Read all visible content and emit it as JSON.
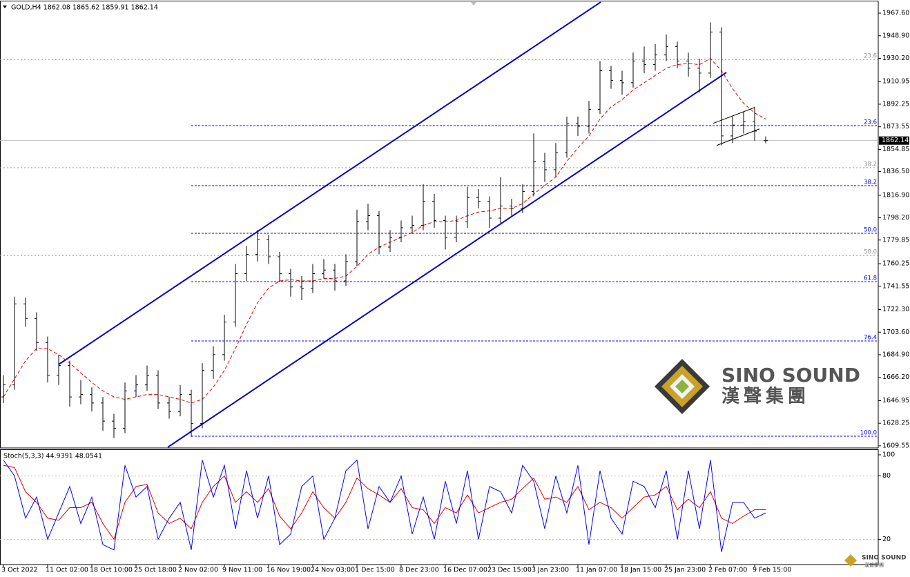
{
  "chart_data": [
    {
      "type": "ohlc",
      "title": "GOLD,H4  1862.08 1865.62 1859.91 1862.14",
      "open": [
        1650,
        1660,
        1727,
        1715,
        1695,
        1668,
        1676,
        1650,
        1652,
        1645,
        1630,
        1624,
        1655,
        1660,
        1668,
        1645,
        1638,
        1652,
        1628,
        1672,
        1685,
        1712,
        1752,
        1768,
        1780,
        1766,
        1752,
        1741,
        1740,
        1752,
        1755,
        1746,
        1762,
        1795,
        1800,
        1774,
        1782,
        1790,
        1792,
        1812,
        1796,
        1782,
        1795,
        1815,
        1812,
        1798,
        1808,
        1806,
        1820,
        1845,
        1838,
        1852,
        1876,
        1874,
        1888,
        1920,
        1912,
        1910,
        1928,
        1925,
        1933,
        1940,
        1928,
        1922,
        1918,
        1952,
        1866,
        1875,
        1878,
        1862.08
      ],
      "high": [
        1668,
        1733,
        1732,
        1720,
        1700,
        1685,
        1680,
        1664,
        1658,
        1650,
        1636,
        1662,
        1668,
        1676,
        1672,
        1650,
        1660,
        1656,
        1678,
        1692,
        1718,
        1760,
        1775,
        1788,
        1784,
        1770,
        1756,
        1750,
        1760,
        1764,
        1760,
        1768,
        1805,
        1810,
        1804,
        1788,
        1796,
        1800,
        1826,
        1818,
        1800,
        1800,
        1824,
        1822,
        1816,
        1832,
        1814,
        1826,
        1868,
        1852,
        1860,
        1882,
        1882,
        1895,
        1928,
        1924,
        1920,
        1935,
        1940,
        1942,
        1950,
        1944,
        1935,
        1930,
        1960,
        1956,
        1882,
        1886,
        1890,
        1865.62
      ],
      "low": [
        1645,
        1656,
        1708,
        1688,
        1662,
        1660,
        1642,
        1644,
        1638,
        1622,
        1616,
        1620,
        1650,
        1655,
        1640,
        1632,
        1634,
        1617,
        1624,
        1665,
        1680,
        1708,
        1746,
        1762,
        1760,
        1745,
        1733,
        1730,
        1736,
        1748,
        1738,
        1742,
        1758,
        1788,
        1768,
        1770,
        1778,
        1785,
        1788,
        1790,
        1772,
        1778,
        1790,
        1806,
        1790,
        1794,
        1800,
        1802,
        1816,
        1828,
        1832,
        1848,
        1866,
        1868,
        1884,
        1905,
        1900,
        1906,
        1918,
        1920,
        1928,
        1922,
        1915,
        1902,
        1914,
        1858,
        1860,
        1868,
        1862,
        1859.91
      ],
      "close": [
        1660,
        1727,
        1715,
        1695,
        1668,
        1676,
        1650,
        1652,
        1645,
        1630,
        1624,
        1655,
        1660,
        1668,
        1645,
        1638,
        1652,
        1628,
        1672,
        1685,
        1712,
        1752,
        1768,
        1780,
        1766,
        1752,
        1741,
        1740,
        1752,
        1755,
        1746,
        1762,
        1795,
        1800,
        1774,
        1782,
        1790,
        1792,
        1812,
        1796,
        1782,
        1795,
        1815,
        1812,
        1798,
        1808,
        1806,
        1820,
        1845,
        1838,
        1852,
        1876,
        1874,
        1888,
        1920,
        1912,
        1910,
        1928,
        1925,
        1933,
        1940,
        1928,
        1922,
        1918,
        1952,
        1866,
        1875,
        1878,
        1870,
        1862.14
      ],
      "color": "#000000",
      "moving_average": {
        "color": "#e00000",
        "values": [
          1650,
          1665,
          1680,
          1690,
          1690,
          1685,
          1678,
          1670,
          1662,
          1655,
          1650,
          1648,
          1650,
          1652,
          1652,
          1650,
          1648,
          1645,
          1648,
          1658,
          1672,
          1690,
          1710,
          1728,
          1740,
          1746,
          1747,
          1746,
          1746,
          1748,
          1748,
          1750,
          1758,
          1768,
          1774,
          1778,
          1782,
          1786,
          1792,
          1795,
          1795,
          1796,
          1800,
          1803,
          1804,
          1806,
          1806,
          1810,
          1818,
          1825,
          1832,
          1845,
          1856,
          1866,
          1880,
          1890,
          1896,
          1904,
          1910,
          1916,
          1922,
          1925,
          1926,
          1925,
          1930,
          1920,
          1905,
          1893,
          1885,
          1880
        ]
      },
      "last_price": 1862.14,
      "xlim": [
        -0.3125,
        79.1875
      ],
      "ylim": [
        1607.8,
        1977.9
      ],
      "yticks": [
        {
          "value": 1967.6,
          "label": "1967.60"
        },
        {
          "value": 1948.9,
          "label": "1948.90"
        },
        {
          "value": 1930.2,
          "label": "1930.20"
        },
        1910.95,
        1892.25,
        1873.55,
        1854.85,
        {
          "value": 1836.5,
          "label": "1836.50"
        },
        {
          "value": 1816.9,
          "label": "1816.90"
        },
        {
          "value": 1798.2,
          "label": "1798.20"
        },
        1779.85,
        1760.25,
        1741.55,
        {
          "value": 1722.3,
          "label": "1722.30"
        },
        {
          "value": 1703.6,
          "label": "1703.60"
        },
        {
          "value": 1684.9,
          "label": "1684.90"
        },
        {
          "value": 1666.2,
          "label": "1666.20"
        },
        1646.95,
        1628.25,
        1609.55
      ],
      "fib_sets": [
        {
          "color": "#0000ff",
          "start": 17,
          "levels": [
            {
              "label": "23.6",
              "value": 1874.5
            },
            {
              "label": "38.2",
              "value": 1824.8
            },
            {
              "label": "50.0",
              "value": 1785.4
            },
            {
              "label": "61.8",
              "value": 1745.4
            },
            {
              "label": "76.4",
              "value": 1696.3
            },
            {
              "label": "100.0",
              "value": 1617.5
            }
          ]
        },
        {
          "color": "#909090",
          "levels": [
            {
              "label": "23.6",
              "value": 1929.3
            },
            {
              "label": "38.2",
              "value": 1839.7
            },
            {
              "label": "50.0",
              "value": 1767.1
            }
          ]
        }
      ],
      "trendlines": [
        {
          "color": "#0000c0",
          "x": [
            5,
            54.06
          ],
          "y": [
            1676.9,
            1976.7
          ]
        },
        {
          "color": "#0000c0",
          "x": [
            14.875,
            65.44
          ],
          "y": [
            1608.4,
            1918.5
          ]
        },
        {
          "color": "#000000",
          "x": [
            64.25,
            68
          ],
          "y": [
            1876.4,
            1889.5
          ]
        },
        {
          "color": "#000000",
          "x": [
            64.56,
            68.44
          ],
          "y": [
            1858.1,
            1871.8
          ]
        }
      ]
    },
    {
      "type": "line",
      "title": "Stoch(5,3,3) 44.9391 48.0541",
      "series": [
        {
          "color": "#0000ff",
          "values": [
            95,
            80,
            40,
            60,
            20,
            45,
            70,
            35,
            60,
            15,
            10,
            90,
            60,
            70,
            20,
            40,
            55,
            10,
            95,
            60,
            90,
            30,
            85,
            40,
            80,
            15,
            25,
            70,
            80,
            20,
            40,
            85,
            95,
            30,
            70,
            55,
            80,
            25,
            60,
            20,
            75,
            35,
            85,
            20,
            70,
            65,
            45,
            90,
            75,
            30,
            80,
            45,
            90,
            15,
            85,
            40,
            25,
            75,
            70,
            50,
            85,
            20,
            85,
            30,
            95,
            8,
            55,
            55,
            40,
            44.9391
          ]
        },
        {
          "color": "#e00000",
          "values": [
            90,
            88,
            65,
            55,
            40,
            38,
            50,
            50,
            55,
            35,
            20,
            55,
            70,
            72,
            45,
            35,
            40,
            30,
            55,
            70,
            80,
            55,
            65,
            55,
            68,
            42,
            30,
            45,
            65,
            50,
            40,
            55,
            78,
            68,
            62,
            55,
            68,
            50,
            48,
            35,
            50,
            45,
            62,
            45,
            50,
            55,
            58,
            68,
            78,
            58,
            60,
            55,
            70,
            48,
            55,
            50,
            40,
            50,
            60,
            62,
            70,
            48,
            58,
            50,
            65,
            40,
            35,
            42,
            48,
            48.0541
          ]
        }
      ],
      "xlim": [
        -0.3125,
        79.1875
      ],
      "ylim": [
        -3.9,
        105.2
      ],
      "yticks": [
        100,
        80,
        20
      ],
      "grid_levels": [
        80,
        20
      ],
      "xticks": [
        {
          "value": 0,
          "label": "3 Oct 2022"
        },
        {
          "value": 4,
          "label": "11 Oct 02:00"
        },
        {
          "value": 8,
          "label": "18 Oct 10:00"
        },
        {
          "value": 12,
          "label": "25 Oct 18:00"
        },
        {
          "value": 16,
          "label": "2 Nov 02:00"
        },
        {
          "value": 20,
          "label": "9 Nov 11:00"
        },
        {
          "value": 24,
          "label": "16 Nov 19:00"
        },
        {
          "value": 28,
          "label": "24 Nov 03:00"
        },
        {
          "value": 32,
          "label": "1 Dec 15:00"
        },
        {
          "value": 36,
          "label": "8 Dec 23:00"
        },
        {
          "value": 40,
          "label": "16 Dec 07:00"
        },
        {
          "value": 44,
          "label": "23 Dec 15:00"
        },
        {
          "value": 48,
          "label": "3 Jan 23:00"
        },
        {
          "value": 52,
          "label": "11 Jan 07:00"
        },
        {
          "value": 56,
          "label": "18 Jan 15:00"
        },
        {
          "value": 60,
          "label": "25 Jan 23:00"
        },
        {
          "value": 64,
          "label": "2 Feb 07:00"
        },
        {
          "value": 68,
          "label": "9 Feb 15:00"
        }
      ]
    }
  ],
  "watermark": {
    "name": "SINO SOUND",
    "chinese": "漢聲集團"
  },
  "footer_logo": {
    "name": "SINO SOUND",
    "chinese": "漢聲集團"
  }
}
